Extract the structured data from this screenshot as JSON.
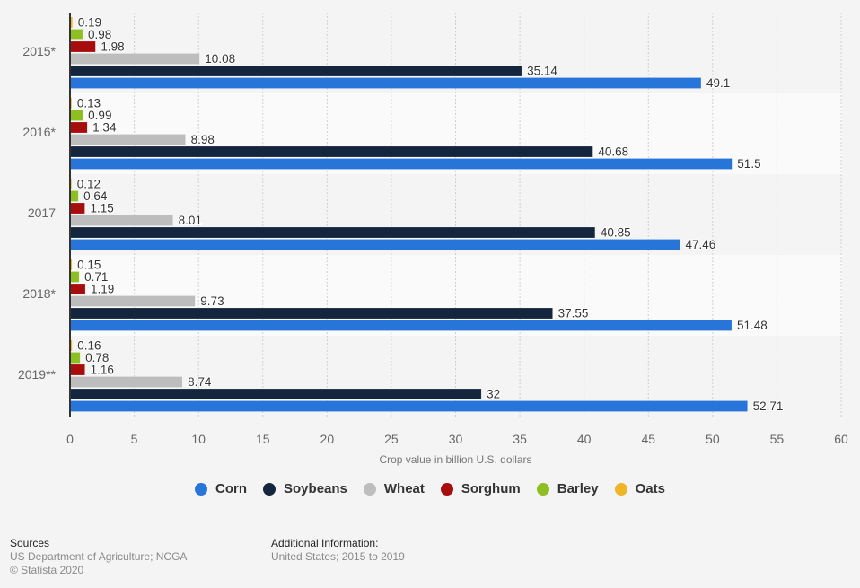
{
  "chart_data": {
    "type": "bar",
    "orientation": "horizontal",
    "title": "",
    "xlabel": "Crop value in billion U.S. dollars",
    "ylabel": "",
    "xlim": [
      0,
      60
    ],
    "x_ticks": [
      0,
      5,
      10,
      15,
      20,
      25,
      30,
      35,
      40,
      45,
      50,
      55,
      60
    ],
    "grid": true,
    "legend_position": "bottom",
    "categories": [
      "2015*",
      "2016*",
      "2017",
      "2018*",
      "2019**"
    ],
    "series": [
      {
        "name": "Oats",
        "color": "#f0b429",
        "values": [
          0.19,
          0.13,
          0.12,
          0.15,
          0.16
        ]
      },
      {
        "name": "Barley",
        "color": "#8dbf23",
        "values": [
          0.98,
          0.99,
          0.64,
          0.71,
          0.78
        ]
      },
      {
        "name": "Sorghum",
        "color": "#a80d0d",
        "values": [
          1.98,
          1.34,
          1.15,
          1.19,
          1.16
        ]
      },
      {
        "name": "Wheat",
        "color": "#bdbdbd",
        "values": [
          10.08,
          8.98,
          8.01,
          9.73,
          8.74
        ]
      },
      {
        "name": "Soybeans",
        "color": "#14263d",
        "values": [
          35.14,
          40.68,
          40.85,
          37.55,
          32
        ]
      },
      {
        "name": "Corn",
        "color": "#2875d9",
        "values": [
          49.1,
          51.5,
          47.46,
          51.48,
          52.71
        ]
      }
    ],
    "value_labels": [
      [
        "0.19",
        "0.98",
        "1.98",
        "10.08",
        "35.14",
        "49.1"
      ],
      [
        "0.13",
        "0.99",
        "1.34",
        "8.98",
        "40.68",
        "51.5"
      ],
      [
        "0.12",
        "0.64",
        "1.15",
        "8.01",
        "40.85",
        "47.46"
      ],
      [
        "0.15",
        "0.71",
        "1.19",
        "9.73",
        "37.55",
        "51.48"
      ],
      [
        "0.16",
        "0.78",
        "1.16",
        "8.74",
        "32",
        "52.71"
      ]
    ]
  },
  "legend": [
    {
      "label": "Corn",
      "color": "#2875d9"
    },
    {
      "label": "Soybeans",
      "color": "#14263d"
    },
    {
      "label": "Wheat",
      "color": "#bdbdbd"
    },
    {
      "label": "Sorghum",
      "color": "#a80d0d"
    },
    {
      "label": "Barley",
      "color": "#8dbf23"
    },
    {
      "label": "Oats",
      "color": "#f0b429"
    }
  ],
  "footer": {
    "sources_heading": "Sources",
    "sources_text": "US Department of Agriculture; NCGA",
    "copyright": "© Statista 2020",
    "additional_heading": "Additional Information:",
    "additional_text": "United States; 2015 to 2019"
  }
}
